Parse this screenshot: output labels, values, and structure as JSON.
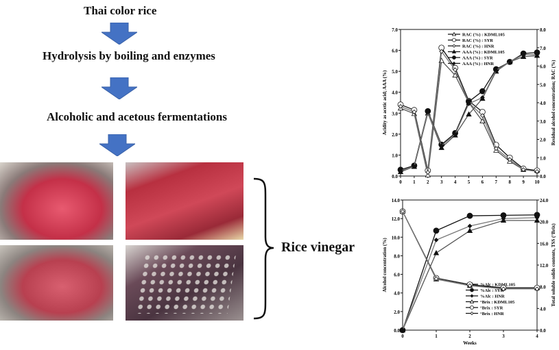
{
  "flow": {
    "steps": [
      "Thai color rice",
      "Hydrolysis by boiling and enzymes",
      "Alcoholic and acetous fermentations"
    ],
    "arrow_color": "#4472C4",
    "result": "Rice vinegar"
  },
  "chart_data": [
    {
      "type": "line",
      "x": [
        0,
        1,
        2,
        3,
        4,
        5,
        6,
        7,
        8,
        9,
        10
      ],
      "xlabel": "",
      "ylabel": "Acidity as acetic acid; AAA (%)",
      "y2label": "Residual alcohol concentration; RAC (%)",
      "ylim": [
        0,
        7
      ],
      "y2lim": [
        0,
        8
      ],
      "yticks": [
        "0.0",
        "1.0",
        "2.0",
        "3.0",
        "4.0",
        "5.0",
        "6.0",
        "7.0"
      ],
      "y2ticks": [
        "0.0",
        "1.0",
        "2.0",
        "3.0",
        "4.0",
        "5.0",
        "6.0",
        "7.0",
        "8.0"
      ],
      "xticks": [
        "0",
        "1",
        "2",
        "3",
        "4",
        "5",
        "6",
        "7",
        "8",
        "9",
        "10"
      ],
      "legend": "top-right",
      "series": [
        {
          "name": "RAC (%) : KDML105",
          "axis": "right",
          "marker": "open-triangle",
          "values": [
            3.7,
            3.4,
            0.05,
            6.3,
            5.5,
            4.0,
            3.0,
            1.4,
            0.8,
            0.35,
            0.3
          ]
        },
        {
          "name": "RAC (%) : SYR",
          "axis": "right",
          "marker": "open-circle",
          "values": [
            3.9,
            3.6,
            0.3,
            7.0,
            5.9,
            4.1,
            3.5,
            1.7,
            1.0,
            0.4,
            0.3
          ]
        },
        {
          "name": "RAC (%) : HNR",
          "axis": "right",
          "marker": "open-diamond",
          "values": [
            3.8,
            3.5,
            0.2,
            6.8,
            5.8,
            4.0,
            3.3,
            1.5,
            0.9,
            0.35,
            0.25
          ]
        },
        {
          "name": "AAA (%) : KDML105",
          "axis": "left",
          "marker": "filled-triangle",
          "values": [
            0.2,
            0.45,
            3.0,
            1.35,
            1.95,
            2.95,
            3.7,
            5.0,
            5.45,
            5.7,
            5.75
          ]
        },
        {
          "name": "AAA (%) : SYR",
          "axis": "left",
          "marker": "filled-circle",
          "values": [
            0.3,
            0.5,
            3.1,
            1.5,
            2.05,
            3.55,
            4.05,
            5.1,
            5.45,
            5.85,
            5.9
          ]
        },
        {
          "name": "AAA (%) : HNR",
          "axis": "left",
          "marker": "filled-diamond",
          "values": [
            0.25,
            0.45,
            3.05,
            1.45,
            2.0,
            3.45,
            3.75,
            5.05,
            5.45,
            5.8,
            5.8
          ]
        }
      ]
    },
    {
      "type": "line",
      "x": [
        0,
        1,
        2,
        3,
        4
      ],
      "xlabel": "Weeks",
      "ylabel": "Alcohol concentration (%)",
      "y2label": "Total soluble solids contents, TSS (°Brix)",
      "ylim": [
        0,
        14
      ],
      "y2lim": [
        0,
        24
      ],
      "yticks": [
        "0.0",
        "2.0",
        "4.0",
        "6.0",
        "8.0",
        "10.0",
        "12.0",
        "14.0"
      ],
      "y2ticks": [
        "0.0",
        "4.0",
        "8.0",
        "12.0",
        "16.0",
        "20.0",
        "24.0"
      ],
      "xticks": [
        "0",
        "1",
        "2",
        "3",
        "4"
      ],
      "legend": "bottom-right",
      "series": [
        {
          "name": "%Alc : KDML105",
          "axis": "left",
          "marker": "filled-triangle",
          "values": [
            0,
            8.3,
            10.7,
            11.8,
            11.8
          ]
        },
        {
          "name": "%Alc : SYR",
          "axis": "left",
          "marker": "filled-circle",
          "values": [
            0,
            10.7,
            12.3,
            12.35,
            12.4
          ]
        },
        {
          "name": "%Alc : HNR",
          "axis": "left",
          "marker": "filled-diamond",
          "values": [
            0,
            9.7,
            11.2,
            12.0,
            12.1
          ]
        },
        {
          "name": "°Brix : KDML105",
          "axis": "right",
          "marker": "open-triangle",
          "values": [
            21.9,
            9.4,
            8.2,
            7.8,
            7.8
          ]
        },
        {
          "name": "°Brix : SYR",
          "axis": "right",
          "marker": "open-circle",
          "values": [
            21.9,
            9.6,
            8.4,
            7.8,
            7.8
          ]
        },
        {
          "name": "°Brix : HNR",
          "axis": "right",
          "marker": "open-diamond",
          "values": [
            21.9,
            9.5,
            8.2,
            7.6,
            7.6
          ]
        }
      ]
    }
  ]
}
